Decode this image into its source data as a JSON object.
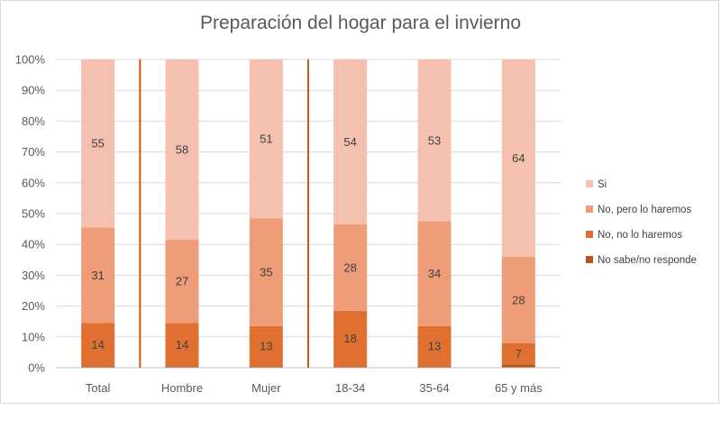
{
  "chart_data": {
    "type": "bar",
    "stacked": true,
    "title": "Preparación del hogar para el invierno",
    "categories": [
      "Total",
      "Hombre",
      "Mujer",
      "18-34",
      "35-64",
      "65 y más"
    ],
    "y_axis": {
      "min": 0,
      "max": 100,
      "unit": "%",
      "tick_labels": [
        "0%",
        "10%",
        "20%",
        "30%",
        "40%",
        "50%",
        "60%",
        "70%",
        "80%",
        "90%",
        "100%"
      ]
    },
    "grid": true,
    "legend_position": "right",
    "group_separators_after": [
      "Total",
      "Mujer"
    ],
    "series": [
      {
        "name": "No sabe/no responde",
        "color": "#b5531f",
        "values": [
          0.5,
          0.5,
          0.5,
          0.5,
          0.5,
          1
        ],
        "labels": [
          "",
          "",
          "",
          "",
          "",
          ""
        ]
      },
      {
        "name": "No, no lo haremos",
        "color": "#e07032",
        "values": [
          14,
          14,
          13,
          18,
          13,
          7
        ],
        "labels": [
          "14",
          "14",
          "13",
          "18",
          "13",
          "7"
        ]
      },
      {
        "name": "No, pero lo haremos",
        "color": "#ee9d78",
        "values": [
          31,
          27,
          35,
          28,
          34,
          28
        ],
        "labels": [
          "31",
          "27",
          "35",
          "28",
          "34",
          "28"
        ]
      },
      {
        "name": "Si",
        "color": "#f4c0b0",
        "values": [
          54.5,
          58.5,
          51.5,
          53.5,
          52.5,
          64
        ],
        "labels": [
          "55",
          "58",
          "51",
          "54",
          "53",
          "64"
        ]
      }
    ],
    "legend_order": [
      "Si",
      "No, pero lo haremos",
      "No, no lo haremos",
      "No sabe/no responde"
    ]
  }
}
